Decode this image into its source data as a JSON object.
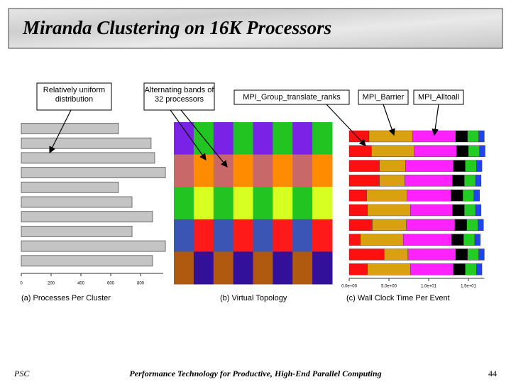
{
  "title": "Miranda Clustering on 16K Processors",
  "footer": {
    "left": "PSC",
    "center": "Performance Technology for Productive, High-End Parallel Computing",
    "page": "44"
  },
  "annotations": [
    "Relatively uniform distribution",
    "Alternating bands of 32 processors",
    "MPI_Group_translate_ranks",
    "MPI_Barrier",
    "MPI_Alltoall"
  ],
  "chart_data": [
    {
      "type": "hbar",
      "caption": "(a) Processes Per Cluster",
      "color": "#c4c4c4",
      "values": [
        652,
        871,
        895,
        967,
        652,
        743,
        881,
        743,
        967,
        881
      ],
      "xlim": [
        0,
        1000
      ],
      "xticks": [
        0,
        200,
        400,
        600,
        800
      ]
    },
    {
      "type": "topology",
      "caption": "(b) Virtual Topology",
      "rows": [
        [
          "#7a22e6",
          "#22c422",
          "#7a22e6",
          "#22c422",
          "#7a22e6",
          "#22c422",
          "#7a22e6",
          "#22c422"
        ],
        [
          "#c86868",
          "#ff8c00",
          "#c86868",
          "#ff8c00",
          "#c86868",
          "#ff8c00",
          "#c86868",
          "#ff8c00"
        ],
        [
          "#22c422",
          "#d8ff22",
          "#22c422",
          "#d8ff22",
          "#22c422",
          "#d8ff22",
          "#22c422",
          "#d8ff22"
        ],
        [
          "#3a55b4",
          "#ff1a1a",
          "#3a55b4",
          "#ff1a1a",
          "#3a55b4",
          "#ff1a1a",
          "#3a55b4",
          "#ff1a1a"
        ],
        [
          "#b05a10",
          "#33109a",
          "#b05a10",
          "#33109a",
          "#b05a10",
          "#33109a",
          "#b05a10",
          "#33109a"
        ]
      ]
    },
    {
      "type": "stacked-hbar",
      "caption": "(c) Wall Clock Time Per Event",
      "series": [
        {
          "name": "MPI_Group_translate_ranks",
          "color": "#ff1010",
          "values": [
            2.5,
            2.8,
            3.8,
            3.8,
            2.2,
            2.3,
            2.9,
            1.4,
            4.4,
            2.3
          ]
        },
        {
          "name": "MPI_Barrier",
          "color": "#d9a010",
          "values": [
            5.5,
            5.4,
            3.3,
            3.2,
            5.1,
            5.4,
            4.3,
            5.4,
            3.0,
            5.4
          ]
        },
        {
          "name": "MPI_Alltoall",
          "color": "#ff22ff",
          "values": [
            5.4,
            5.3,
            6.0,
            6.0,
            5.5,
            5.3,
            6.1,
            6.1,
            6.0,
            5.4
          ]
        },
        {
          "color": "#000000",
          "values": [
            1.5,
            1.5,
            1.5,
            1.5,
            1.5,
            1.5,
            1.5,
            1.5,
            1.5,
            1.5
          ]
        },
        {
          "color": "#22cc22",
          "values": [
            1.4,
            1.4,
            1.4,
            1.4,
            1.4,
            1.4,
            1.4,
            1.4,
            1.4,
            1.4
          ]
        },
        {
          "color": "#2244ee",
          "values": [
            0.7,
            0.7,
            0.7,
            0.7,
            0.7,
            0.7,
            0.7,
            0.7,
            0.7,
            0.7
          ]
        }
      ],
      "xlim": [
        0,
        17
      ],
      "xticks": [
        {
          "value": 0,
          "label": "0.0e+00"
        },
        {
          "value": 5,
          "label": "5.0e+00"
        },
        {
          "value": 10,
          "label": "1.0e+01"
        },
        {
          "value": 15,
          "label": "1.5e+01"
        }
      ]
    }
  ]
}
